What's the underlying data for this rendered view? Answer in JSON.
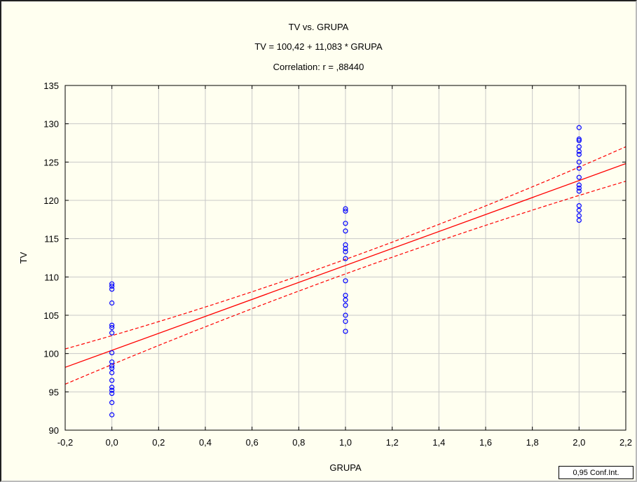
{
  "chart_data": {
    "type": "scatter",
    "title": "TV vs. GRUPA",
    "equation": "TV = 100,42 + 11,083 * GRUPA",
    "correlation": "Correlation: r = ,88440",
    "xlabel": "GRUPA",
    "ylabel": "TV",
    "xlim": [
      -0.2,
      2.2
    ],
    "ylim": [
      90,
      135
    ],
    "x_ticks": [
      "-0,2",
      "0,0",
      "0,2",
      "0,4",
      "0,6",
      "0,8",
      "1,0",
      "1,2",
      "1,4",
      "1,6",
      "1,8",
      "2,0",
      "2,2"
    ],
    "y_ticks": [
      "90",
      "95",
      "100",
      "105",
      "110",
      "115",
      "120",
      "125",
      "130",
      "135"
    ],
    "grid": true,
    "legend": "0,95 Conf.Int.",
    "regression": {
      "intercept": 100.42,
      "slope": 11.083
    },
    "conf_band": {
      "x": [
        -0.2,
        1.0,
        2.2
      ],
      "lower": [
        96.0,
        110.4,
        122.5
      ],
      "upper": [
        100.6,
        112.3,
        127.0
      ]
    },
    "colors": {
      "points": "#0000ff",
      "line": "#ff0000",
      "grid": "#c8c8c8",
      "background": "#fffff0"
    },
    "points": [
      {
        "x": 0,
        "y": 92.0
      },
      {
        "x": 0,
        "y": 93.6
      },
      {
        "x": 0,
        "y": 94.8
      },
      {
        "x": 0,
        "y": 95.2
      },
      {
        "x": 0,
        "y": 95.6
      },
      {
        "x": 0,
        "y": 96.5
      },
      {
        "x": 0,
        "y": 97.5
      },
      {
        "x": 0,
        "y": 98.1
      },
      {
        "x": 0,
        "y": 98.4
      },
      {
        "x": 0,
        "y": 98.9
      },
      {
        "x": 0,
        "y": 100.1
      },
      {
        "x": 0,
        "y": 102.7
      },
      {
        "x": 0,
        "y": 103.4
      },
      {
        "x": 0,
        "y": 103.7
      },
      {
        "x": 0,
        "y": 106.6
      },
      {
        "x": 0,
        "y": 108.4
      },
      {
        "x": 0,
        "y": 108.8
      },
      {
        "x": 0,
        "y": 109.1
      },
      {
        "x": 1,
        "y": 102.9
      },
      {
        "x": 1,
        "y": 104.2
      },
      {
        "x": 1,
        "y": 105.0
      },
      {
        "x": 1,
        "y": 106.3
      },
      {
        "x": 1,
        "y": 107.0
      },
      {
        "x": 1,
        "y": 107.6
      },
      {
        "x": 1,
        "y": 109.5
      },
      {
        "x": 1,
        "y": 112.4
      },
      {
        "x": 1,
        "y": 113.3
      },
      {
        "x": 1,
        "y": 113.7
      },
      {
        "x": 1,
        "y": 114.2
      },
      {
        "x": 1,
        "y": 116.0
      },
      {
        "x": 1,
        "y": 117.0
      },
      {
        "x": 1,
        "y": 118.6
      },
      {
        "x": 1,
        "y": 118.9
      },
      {
        "x": 2,
        "y": 117.4
      },
      {
        "x": 2,
        "y": 118.0
      },
      {
        "x": 2,
        "y": 118.7
      },
      {
        "x": 2,
        "y": 119.3
      },
      {
        "x": 2,
        "y": 121.2
      },
      {
        "x": 2,
        "y": 121.6
      },
      {
        "x": 2,
        "y": 122.0
      },
      {
        "x": 2,
        "y": 123.0
      },
      {
        "x": 2,
        "y": 124.2
      },
      {
        "x": 2,
        "y": 125.0
      },
      {
        "x": 2,
        "y": 126.0
      },
      {
        "x": 2,
        "y": 126.4
      },
      {
        "x": 2,
        "y": 127.0
      },
      {
        "x": 2,
        "y": 127.8
      },
      {
        "x": 2,
        "y": 128.0
      },
      {
        "x": 2,
        "y": 129.5
      }
    ]
  }
}
